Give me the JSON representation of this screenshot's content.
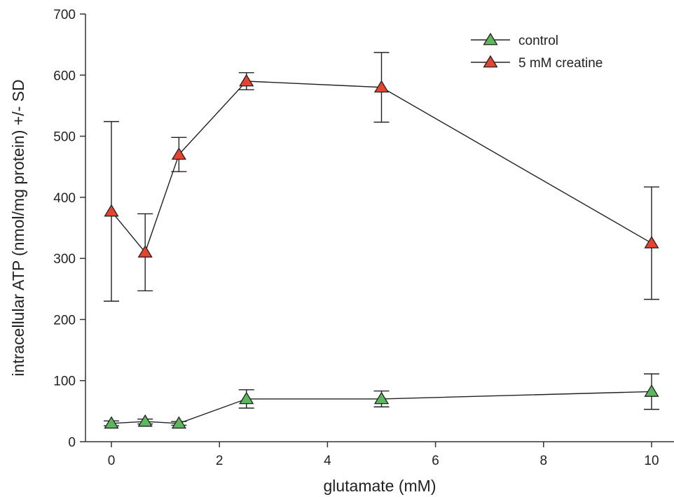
{
  "chart_data": {
    "type": "line",
    "title": "",
    "xlabel": "glutamate (mM)",
    "ylabel": "intracellular ATP (nmol/mg protein) +/- SD",
    "xlim": [
      -0.6,
      10.5
    ],
    "ylim": [
      0,
      700
    ],
    "x_ticks": [
      0,
      2,
      4,
      6,
      8,
      10
    ],
    "y_ticks": [
      0,
      100,
      200,
      300,
      400,
      500,
      600,
      700
    ],
    "grid": false,
    "legend_position": "top-right",
    "series": [
      {
        "name": "control",
        "color": "#5cb85c",
        "marker": "triangle",
        "x": [
          0,
          0.625,
          1.25,
          2.5,
          5,
          10
        ],
        "y": [
          30,
          33,
          30,
          70,
          70,
          82
        ],
        "sd": [
          4,
          4,
          3,
          15,
          13,
          29
        ]
      },
      {
        "name": "5 mM creatine",
        "color": "#e8432f",
        "marker": "triangle",
        "x": [
          0,
          0.625,
          1.25,
          2.5,
          5,
          10
        ],
        "y": [
          377,
          310,
          470,
          590,
          580,
          325
        ],
        "sd": [
          147,
          63,
          28,
          14,
          57,
          92
        ]
      }
    ]
  }
}
